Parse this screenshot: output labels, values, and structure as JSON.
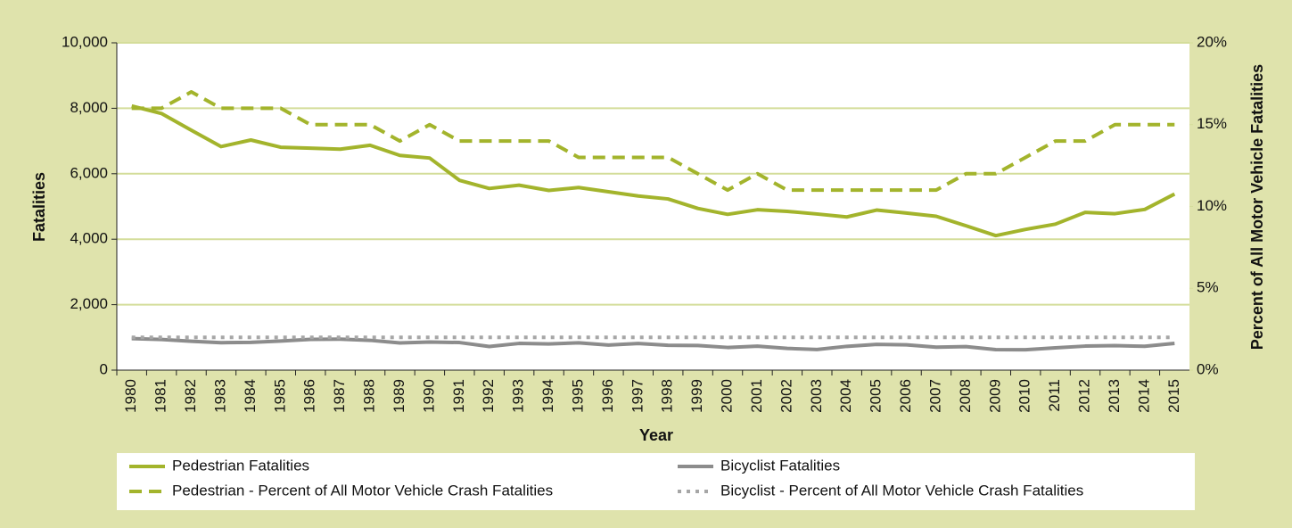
{
  "chart_data": {
    "type": "line",
    "categories": [
      "1980",
      "1981",
      "1982",
      "1983",
      "1984",
      "1985",
      "1986",
      "1987",
      "1988",
      "1989",
      "1990",
      "1991",
      "1992",
      "1993",
      "1994",
      "1995",
      "1996",
      "1997",
      "1998",
      "1999",
      "2000",
      "2001",
      "2002",
      "2003",
      "2004",
      "2005",
      "2006",
      "2007",
      "2008",
      "2009",
      "2010",
      "2011",
      "2012",
      "2013",
      "2014",
      "2015"
    ],
    "x_label": "Year",
    "y_label": "Fatalities",
    "y2_label": "Percent of All Motor Vehicle Fatalities",
    "ylim": [
      0,
      10000
    ],
    "yticks": [
      0,
      {
        "value": 2000,
        "label": "2,000"
      },
      {
        "value": 4000,
        "label": "4,000"
      },
      {
        "value": 6000,
        "label": "6,000"
      },
      {
        "value": 8000,
        "label": "8,000"
      },
      {
        "value": 10000,
        "label": "10,000"
      }
    ],
    "y2lim": [
      0,
      20
    ],
    "y2ticks": [
      {
        "value": 0,
        "label": "0%"
      },
      {
        "value": 5,
        "label": "5%"
      },
      {
        "value": 10,
        "label": "10%"
      },
      {
        "value": 15,
        "label": "15%"
      },
      {
        "value": 20,
        "label": "20%"
      }
    ],
    "grid": true,
    "series": [
      {
        "name": "Pedestrian Fatalities",
        "color": "#a3b42c",
        "line_style": "solid",
        "values": [
          8070,
          7840,
          7330,
          6830,
          7030,
          6810,
          6780,
          6750,
          6870,
          6560,
          6480,
          5800,
          5550,
          5650,
          5490,
          5580,
          5450,
          5320,
          5230,
          4940,
          4760,
          4900,
          4850,
          4770,
          4680,
          4890,
          4800,
          4700,
          4410,
          4110,
          4300,
          4460,
          4820,
          4780,
          4910,
          5380
        ]
      },
      {
        "name": "Pedestrian - Percent of All Motor Vehicle Crash Fatalities",
        "color": "#a3b42c",
        "line_style": "dashed",
        "axis": "y2",
        "values": [
          16,
          16,
          17,
          16,
          16,
          16,
          15,
          15,
          15,
          14,
          15,
          14,
          14,
          14,
          14,
          13,
          13,
          13,
          13,
          12,
          11,
          12,
          11,
          11,
          11,
          11,
          11,
          11,
          12,
          12,
          13,
          14,
          14,
          15,
          15,
          15
        ]
      },
      {
        "name": "Bicyclist Fatalities",
        "color": "#8c8c8c",
        "line_style": "solid",
        "values": [
          965,
          936,
          883,
          839,
          849,
          890,
          941,
          948,
          911,
          832,
          859,
          843,
          723,
          816,
          802,
          833,
          765,
          814,
          760,
          754,
          693,
          732,
          665,
          629,
          727,
          786,
          772,
          701,
          718,
          628,
          623,
          682,
          734,
          749,
          729,
          818
        ]
      },
      {
        "name": "Bicyclist - Percent of All Motor Vehicle Crash Fatalities",
        "color": "#a6a6a6",
        "line_style": "dotted",
        "axis": "y2",
        "values": [
          2,
          2,
          2,
          2,
          2,
          2,
          2,
          2,
          2,
          2,
          2,
          2,
          2,
          2,
          2,
          2,
          2,
          2,
          2,
          2,
          2,
          2,
          2,
          2,
          2,
          2,
          2,
          2,
          2,
          2,
          2,
          2,
          2,
          2,
          2,
          2
        ]
      }
    ]
  }
}
